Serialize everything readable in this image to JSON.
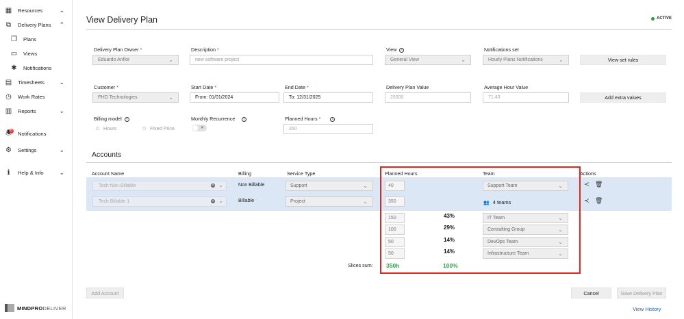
{
  "sidebar": {
    "items": [
      {
        "label": "Resources"
      },
      {
        "label": "Delivery Plans"
      },
      {
        "label": "Plans"
      },
      {
        "label": "Views"
      },
      {
        "label": "Notifications"
      },
      {
        "label": "Timesheets"
      },
      {
        "label": "Work Rates"
      },
      {
        "label": "Reports"
      },
      {
        "label": "Notifications",
        "badge": "8"
      },
      {
        "label": "Settings"
      },
      {
        "label": "Help & Info"
      }
    ],
    "logo": {
      "part1": "MINDPRO",
      "part2": "DELIVER"
    }
  },
  "page": {
    "title": "View Delivery Plan",
    "status": "ACTIVE"
  },
  "form": {
    "owner": {
      "label": "Delivery Plan Owner",
      "value": "Eduardo Anflor"
    },
    "description": {
      "label": "Description",
      "placeholder": "new software project"
    },
    "view": {
      "label": "View",
      "value": "General View"
    },
    "notifications_set": {
      "label": "Notifications set",
      "value": "Hourly Plans Notifications"
    },
    "view_set_rules": "View set rules",
    "customer": {
      "label": "Customer",
      "value": "PHD Technologies"
    },
    "start_date": {
      "label": "Start Date",
      "value": "From: 01/01/2024"
    },
    "end_date": {
      "label": "End Date",
      "value": "To: 12/31/2025"
    },
    "plan_value": {
      "label": "Delivery Plan Value",
      "placeholder": "25000"
    },
    "avg_hour": {
      "label": "Average Hour Value",
      "placeholder": "71.43"
    },
    "add_extra_values": "Add extra values",
    "billing_model": {
      "label": "Billing model",
      "options": [
        "Hours",
        "Fixed Price"
      ]
    },
    "monthly_recurrence": {
      "label": "Monthly Recurrence"
    },
    "planned_hours": {
      "label": "Planned Hours",
      "placeholder": "350"
    }
  },
  "accounts": {
    "title": "Accounts",
    "columns": [
      "Account Name",
      "Billing",
      "Service Type",
      "Planned Hours",
      "Team",
      "Actions"
    ],
    "rows": [
      {
        "name": "Tech Non-Billable",
        "billing": "Non Billable",
        "service": "Support",
        "hours": "40",
        "team": "Support Team"
      },
      {
        "name": "Tech Billable 1",
        "billing": "Billable",
        "service": "Project",
        "hours": "350",
        "team": "4 teams"
      }
    ],
    "slices": [
      {
        "hours": "150",
        "pct": "43%",
        "team": "IT Team"
      },
      {
        "hours": "100",
        "pct": "29%",
        "team": "Consulting Group"
      },
      {
        "hours": "50",
        "pct": "14%",
        "team": "DevOps Team"
      },
      {
        "hours": "50",
        "pct": "14%",
        "team": "Infrastructure Team"
      }
    ],
    "sum_label": "Slices sum:",
    "sum_hours": "350h",
    "sum_pct": "100%"
  },
  "footer": {
    "add_account": "Add Account",
    "cancel": "Cancel",
    "save": "Save Delivery Plan",
    "view_history": "View History"
  }
}
